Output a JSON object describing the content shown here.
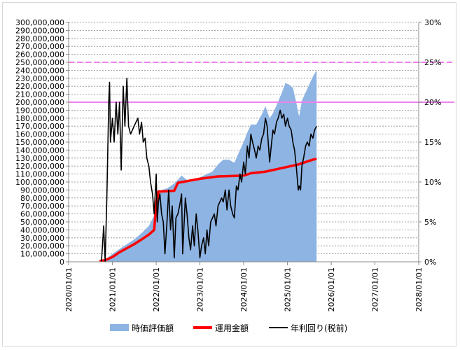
{
  "chart_data": {
    "type": "area",
    "grid": true,
    "legend_position": "bottom",
    "y_left": {
      "min": 0,
      "max": 300000000,
      "step": 10000000,
      "tick_labels": [
        "0",
        "10,000,000",
        "20,000,000",
        "30,000,000",
        "40,000,000",
        "50,000,000",
        "60,000,000",
        "70,000,000",
        "80,000,000",
        "90,000,000",
        "100,000,000",
        "110,000,000",
        "120,000,000",
        "130,000,000",
        "140,000,000",
        "150,000,000",
        "160,000,000",
        "170,000,000",
        "180,000,000",
        "190,000,000",
        "200,000,000",
        "210,000,000",
        "220,000,000",
        "230,000,000",
        "240,000,000",
        "250,000,000",
        "260,000,000",
        "270,000,000",
        "280,000,000",
        "290,000,000",
        "300,000,000"
      ]
    },
    "y_right": {
      "min": 0,
      "max": 30,
      "step": 5,
      "tick_labels": [
        "0%",
        "5%",
        "10%",
        "15%",
        "20%",
        "25%",
        "30%"
      ]
    },
    "x_axis": {
      "tick_labels": [
        "2020/01/01",
        "2021/01/01",
        "2022/01/01",
        "2023/01/01",
        "2024/01/01",
        "2025/01/01",
        "2026/01/01",
        "2027/01/01",
        "2028/01/01"
      ]
    },
    "reference_lines_pct": [
      {
        "value": 25,
        "color": "#ee82ee",
        "style": "dashed"
      },
      {
        "value": 20,
        "color": "#ee82ee",
        "style": "solid"
      }
    ],
    "series": [
      {
        "name": "時価評価額",
        "axis": "left",
        "kind": "area",
        "color": "#8db4e2",
        "points": [
          [
            "2020-09-01",
            0
          ],
          [
            "2020-11-01",
            3000000
          ],
          [
            "2021-01-01",
            10000000
          ],
          [
            "2021-03-01",
            16000000
          ],
          [
            "2021-05-01",
            22000000
          ],
          [
            "2021-07-01",
            28000000
          ],
          [
            "2021-09-01",
            36000000
          ],
          [
            "2021-11-01",
            45000000
          ],
          [
            "2021-12-15",
            58000000
          ],
          [
            "2022-01-01",
            80000000
          ],
          [
            "2022-02-15",
            90000000
          ],
          [
            "2022-04-01",
            92000000
          ],
          [
            "2022-06-01",
            98000000
          ],
          [
            "2022-07-01",
            103000000
          ],
          [
            "2022-08-01",
            108000000
          ],
          [
            "2022-09-01",
            104000000
          ],
          [
            "2022-10-15",
            100000000
          ],
          [
            "2022-12-01",
            104000000
          ],
          [
            "2023-01-01",
            106000000
          ],
          [
            "2023-03-01",
            110000000
          ],
          [
            "2023-04-15",
            113000000
          ],
          [
            "2023-06-01",
            122000000
          ],
          [
            "2023-07-15",
            128000000
          ],
          [
            "2023-09-01",
            128000000
          ],
          [
            "2023-10-15",
            124000000
          ],
          [
            "2023-12-01",
            140000000
          ],
          [
            "2024-01-01",
            150000000
          ],
          [
            "2024-02-01",
            162000000
          ],
          [
            "2024-03-01",
            172000000
          ],
          [
            "2024-04-15",
            172000000
          ],
          [
            "2024-06-01",
            185000000
          ],
          [
            "2024-07-01",
            195000000
          ],
          [
            "2024-08-05",
            180000000
          ],
          [
            "2024-09-01",
            186000000
          ],
          [
            "2024-10-01",
            196000000
          ],
          [
            "2024-11-15",
            212000000
          ],
          [
            "2024-12-15",
            224000000
          ],
          [
            "2025-01-15",
            222000000
          ],
          [
            "2025-02-15",
            218000000
          ],
          [
            "2025-03-15",
            200000000
          ],
          [
            "2025-04-08",
            182000000
          ],
          [
            "2025-05-01",
            202000000
          ],
          [
            "2025-06-01",
            212000000
          ],
          [
            "2025-07-01",
            222000000
          ],
          [
            "2025-08-01",
            232000000
          ],
          [
            "2025-09-01",
            240000000
          ]
        ]
      },
      {
        "name": "運用金額",
        "axis": "left",
        "kind": "line",
        "color": "#ff0000",
        "points": [
          [
            "2020-09-15",
            1000000
          ],
          [
            "2020-11-01",
            2000000
          ],
          [
            "2021-01-01",
            6000000
          ],
          [
            "2021-03-01",
            12000000
          ],
          [
            "2021-05-01",
            17000000
          ],
          [
            "2021-07-01",
            22000000
          ],
          [
            "2021-09-01",
            28000000
          ],
          [
            "2021-11-01",
            34000000
          ],
          [
            "2021-12-15",
            40000000
          ],
          [
            "2022-01-01",
            72000000
          ],
          [
            "2022-01-20",
            88000000
          ],
          [
            "2022-06-01",
            89000000
          ],
          [
            "2022-07-01",
            99000000
          ],
          [
            "2023-01-01",
            104000000
          ],
          [
            "2023-06-01",
            107000000
          ],
          [
            "2024-01-01",
            108000000
          ],
          [
            "2024-03-01",
            111000000
          ],
          [
            "2024-07-01",
            113000000
          ],
          [
            "2025-01-01",
            119000000
          ],
          [
            "2025-04-01",
            122000000
          ],
          [
            "2025-08-01",
            128000000
          ],
          [
            "2025-09-01",
            129000000
          ]
        ]
      },
      {
        "name": "年利回り(税前)",
        "axis": "right",
        "kind": "line",
        "color": "#000000",
        "points": [
          [
            "2020-10-01",
            0
          ],
          [
            "2020-10-20",
            4.5
          ],
          [
            "2020-11-01",
            0
          ],
          [
            "2020-11-15",
            8
          ],
          [
            "2020-12-01",
            20
          ],
          [
            "2020-12-08",
            22.5
          ],
          [
            "2020-12-15",
            15
          ],
          [
            "2021-01-01",
            18
          ],
          [
            "2021-01-15",
            15
          ],
          [
            "2021-02-01",
            20
          ],
          [
            "2021-02-15",
            16
          ],
          [
            "2021-03-01",
            20
          ],
          [
            "2021-03-15",
            11.5
          ],
          [
            "2021-04-01",
            22
          ],
          [
            "2021-04-15",
            17
          ],
          [
            "2021-05-01",
            23
          ],
          [
            "2021-05-15",
            17
          ],
          [
            "2021-06-01",
            16
          ],
          [
            "2021-07-01",
            17
          ],
          [
            "2021-08-01",
            18
          ],
          [
            "2021-08-15",
            16
          ],
          [
            "2021-09-01",
            17.5
          ],
          [
            "2021-09-15",
            15
          ],
          [
            "2021-10-01",
            15.5
          ],
          [
            "2021-10-15",
            13
          ],
          [
            "2021-11-01",
            12
          ],
          [
            "2021-11-15",
            10
          ],
          [
            "2021-12-01",
            8.5
          ],
          [
            "2021-12-15",
            6
          ],
          [
            "2022-01-01",
            11
          ],
          [
            "2022-01-10",
            5
          ],
          [
            "2022-01-20",
            7.5
          ],
          [
            "2022-02-01",
            8.5
          ],
          [
            "2022-02-15",
            6
          ],
          [
            "2022-03-01",
            5
          ],
          [
            "2022-03-15",
            1
          ],
          [
            "2022-04-01",
            5
          ],
          [
            "2022-04-15",
            9
          ],
          [
            "2022-05-01",
            4
          ],
          [
            "2022-05-15",
            7
          ],
          [
            "2022-06-01",
            0.5
          ],
          [
            "2022-06-15",
            5.5
          ],
          [
            "2022-07-01",
            6
          ],
          [
            "2022-07-15",
            7
          ],
          [
            "2022-08-01",
            8.5
          ],
          [
            "2022-08-10",
            1
          ],
          [
            "2022-09-01",
            8
          ],
          [
            "2022-09-15",
            6
          ],
          [
            "2022-10-01",
            3
          ],
          [
            "2022-10-15",
            1.5
          ],
          [
            "2022-11-01",
            4.5
          ],
          [
            "2022-11-15",
            2
          ],
          [
            "2022-12-01",
            6
          ],
          [
            "2022-12-15",
            4
          ],
          [
            "2023-01-01",
            0.5
          ],
          [
            "2023-01-15",
            2
          ],
          [
            "2023-02-01",
            3
          ],
          [
            "2023-02-15",
            1
          ],
          [
            "2023-03-01",
            4
          ],
          [
            "2023-03-15",
            2
          ],
          [
            "2023-04-01",
            5
          ],
          [
            "2023-05-01",
            6
          ],
          [
            "2023-05-15",
            4.5
          ],
          [
            "2023-06-01",
            7
          ],
          [
            "2023-07-01",
            8
          ],
          [
            "2023-07-15",
            7.5
          ],
          [
            "2023-08-01",
            9
          ],
          [
            "2023-08-15",
            6.5
          ],
          [
            "2023-09-01",
            9
          ],
          [
            "2023-09-15",
            7
          ],
          [
            "2023-10-01",
            6
          ],
          [
            "2023-10-15",
            5.5
          ],
          [
            "2023-11-01",
            9.5
          ],
          [
            "2023-11-15",
            9
          ],
          [
            "2023-12-01",
            11
          ],
          [
            "2023-12-15",
            10
          ],
          [
            "2024-01-01",
            12.5
          ],
          [
            "2024-01-15",
            11
          ],
          [
            "2024-02-01",
            14.5
          ],
          [
            "2024-02-15",
            13
          ],
          [
            "2024-03-01",
            16
          ],
          [
            "2024-03-15",
            15
          ],
          [
            "2024-04-01",
            14
          ],
          [
            "2024-04-15",
            13
          ],
          [
            "2024-05-01",
            14.5
          ],
          [
            "2024-05-15",
            14
          ],
          [
            "2024-06-01",
            15.5
          ],
          [
            "2024-06-15",
            16
          ],
          [
            "2024-07-01",
            18
          ],
          [
            "2024-07-15",
            17
          ],
          [
            "2024-08-05",
            12.5
          ],
          [
            "2024-08-15",
            14
          ],
          [
            "2024-09-01",
            16.5
          ],
          [
            "2024-09-15",
            16
          ],
          [
            "2024-10-01",
            17.5
          ],
          [
            "2024-10-15",
            18
          ],
          [
            "2024-11-01",
            19
          ],
          [
            "2024-11-15",
            18
          ],
          [
            "2024-12-01",
            18.5
          ],
          [
            "2024-12-15",
            17
          ],
          [
            "2025-01-01",
            18
          ],
          [
            "2025-01-15",
            17
          ],
          [
            "2025-02-01",
            16.5
          ],
          [
            "2025-02-15",
            15
          ],
          [
            "2025-03-01",
            14
          ],
          [
            "2025-03-15",
            12
          ],
          [
            "2025-04-01",
            9
          ],
          [
            "2025-04-08",
            9.5
          ],
          [
            "2025-04-20",
            9
          ],
          [
            "2025-05-01",
            12
          ],
          [
            "2025-05-15",
            13
          ],
          [
            "2025-06-01",
            14.5
          ],
          [
            "2025-06-15",
            15
          ],
          [
            "2025-07-01",
            14.5
          ],
          [
            "2025-07-15",
            16
          ],
          [
            "2025-08-01",
            15.5
          ],
          [
            "2025-08-15",
            16.5
          ],
          [
            "2025-09-01",
            17
          ]
        ]
      }
    ]
  }
}
